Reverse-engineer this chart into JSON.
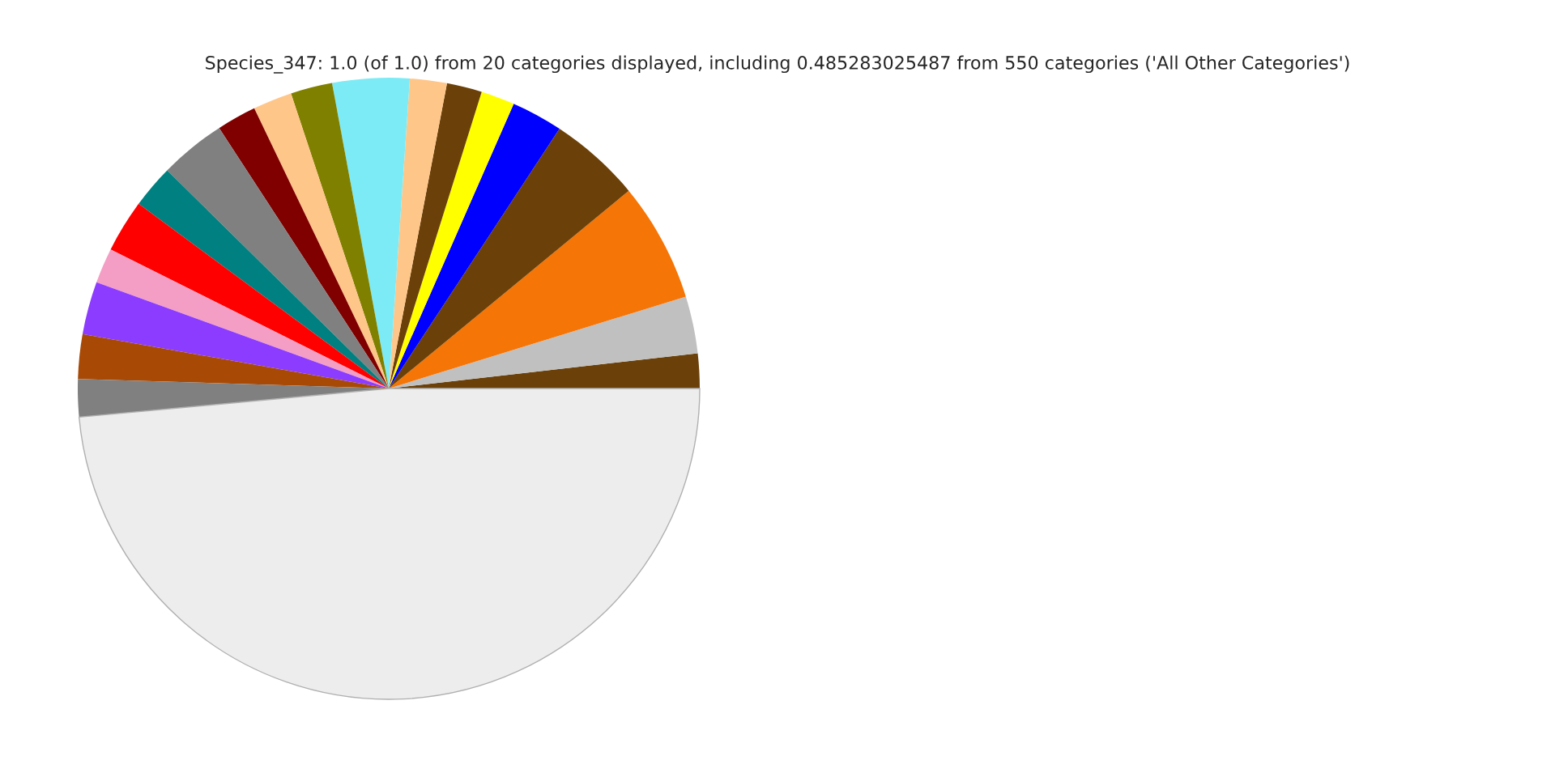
{
  "chart_data": {
    "type": "pie",
    "title": "Species_347: 1.0 (of 1.0) from 20 categories displayed, including 0.485283025487 from 550 categories ('All Other Categories')",
    "categories": [
      null,
      null,
      null,
      null,
      null,
      null,
      null,
      null,
      null,
      null,
      null,
      null,
      null,
      null,
      null,
      null,
      null,
      null,
      null,
      null
    ],
    "values": [
      1.81,
      2.97,
      6.19,
      4.78,
      2.67,
      1.75,
      1.83,
      1.92,
      4.0,
      2.17,
      2.03,
      2.06,
      3.44,
      2.25,
      2.75,
      1.83,
      2.75,
      2.31,
      1.96,
      48.53
    ],
    "colors": [
      "#6b4109",
      "#c0c0c0",
      "#f57506",
      "#6b4109",
      "#0000ff",
      "#ffff00",
      "#6b4109",
      "#ffc68a",
      "#7debf5",
      "#808000",
      "#ffc68a",
      "#800000",
      "#808080",
      "#008080",
      "#ff0000",
      "#f59ec5",
      "#8c3cff",
      "#a84a06",
      "#808080",
      "#ededed"
    ]
  }
}
